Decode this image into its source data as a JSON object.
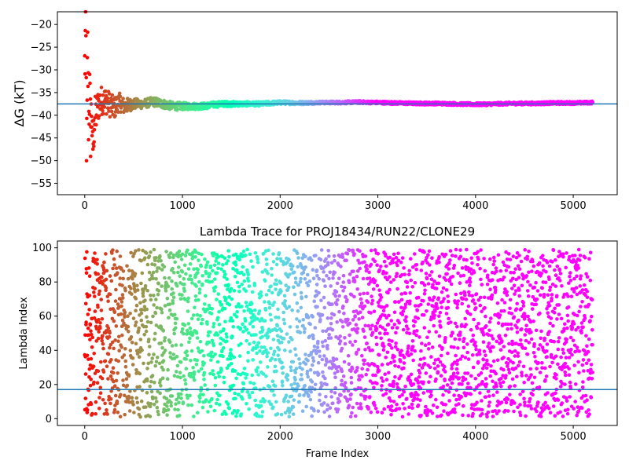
{
  "chart_data": [
    {
      "type": "scatter",
      "title": "",
      "xlabel": "",
      "ylabel": "ΔG (kT)",
      "xlim": [
        -280,
        5450
      ],
      "ylim": [
        -57.5,
        -17.2
      ],
      "x_ticks": [
        0,
        1000,
        2000,
        3000,
        4000,
        5000
      ],
      "x_tick_labels": [
        "0",
        "1000",
        "2000",
        "3000",
        "4000",
        "5000"
      ],
      "y_ticks": [
        -55,
        -50,
        -45,
        -40,
        -35,
        -30,
        -25,
        -20
      ],
      "y_tick_labels": [
        "−55",
        "−50",
        "−45",
        "−40",
        "−35",
        "−30",
        "−25",
        "−20"
      ],
      "hline": {
        "y": -37.5,
        "color": "#1f77b4"
      },
      "colormap": "rainbow (red at frame 0 → violet at end)",
      "n_frames": 5200,
      "series": [
        {
          "x": [
            0,
            10,
            20,
            30,
            40,
            50,
            60,
            70,
            80,
            100,
            150,
            200,
            250,
            300,
            350,
            400,
            500,
            600,
            700,
            800,
            900,
            1000,
            1200,
            1400,
            1600,
            1800,
            2000,
            2200,
            2400,
            2600,
            2800,
            3000,
            3200,
            3400,
            3600,
            3800,
            4000,
            4200,
            4400,
            4600,
            4800,
            5000,
            5200
          ],
          "y": [
            -30,
            -20,
            -50,
            -26,
            -42,
            -34,
            -44,
            -38,
            -48,
            -41,
            -37,
            -36.5,
            -37.5,
            -38.5,
            -37,
            -38,
            -37.5,
            -37.5,
            -37,
            -37.5,
            -38,
            -38,
            -38,
            -37.5,
            -37.5,
            -37.5,
            -37.2,
            -37.3,
            -37.2,
            -37.2,
            -37.1,
            -37.2,
            -37.3,
            -37.4,
            -37.4,
            -37.5,
            -37.6,
            -37.5,
            -37.4,
            -37.4,
            -37.3,
            -37.3,
            -37.2
          ],
          "spread": [
            10,
            10,
            9,
            9,
            8,
            7,
            6.5,
            6,
            5.5,
            5,
            3.5,
            3,
            2.8,
            2.5,
            2.0,
            1.8,
            1.2,
            1.0,
            1.0,
            1.0,
            0.9,
            0.8,
            0.7,
            0.6,
            0.5,
            0.45,
            0.4,
            0.35,
            0.3,
            0.3,
            0.3,
            0.3,
            0.3,
            0.3,
            0.3,
            0.3,
            0.3,
            0.3,
            0.3,
            0.3,
            0.3,
            0.3,
            0.3
          ]
        }
      ]
    },
    {
      "type": "scatter",
      "title": "Lambda Trace for PROJ18434/RUN22/CLONE29",
      "xlabel": "Frame Index",
      "ylabel": "Lambda Index",
      "xlim": [
        -280,
        5450
      ],
      "ylim": [
        -4,
        104
      ],
      "x_ticks": [
        0,
        1000,
        2000,
        3000,
        4000,
        5000
      ],
      "x_tick_labels": [
        "0",
        "1000",
        "2000",
        "3000",
        "4000",
        "5000"
      ],
      "y_ticks": [
        0,
        20,
        40,
        60,
        80,
        100
      ],
      "y_tick_labels": [
        "0",
        "20",
        "40",
        "60",
        "80",
        "100"
      ],
      "hline": {
        "y": 17,
        "color": "#1f77b4"
      },
      "colormap": "rainbow (red at frame 0 → violet at end)",
      "n_frames": 5200,
      "value_range": [
        1,
        99
      ]
    }
  ]
}
